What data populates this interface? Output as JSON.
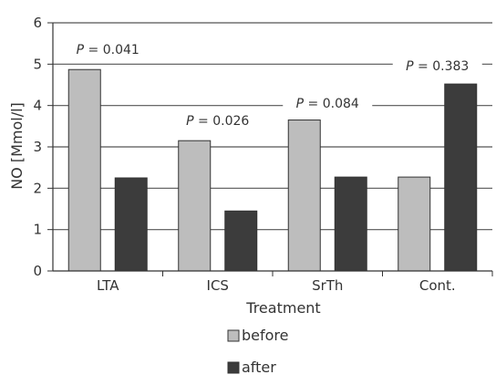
{
  "chart_data": {
    "type": "bar",
    "categories": [
      "LTA",
      "ICS",
      "SrTh",
      "Cont."
    ],
    "series": [
      {
        "name": "before",
        "values": [
          4.87,
          3.15,
          3.65,
          2.27
        ],
        "color": "#bdbdbd"
      },
      {
        "name": "after",
        "values": [
          2.25,
          1.45,
          2.27,
          4.52
        ],
        "color": "#3c3c3c"
      }
    ],
    "xlabel": "Treatment",
    "ylabel": "NO [Mmol/l]",
    "ylim": [
      0,
      6
    ],
    "yticks": [
      "0",
      "1",
      "2",
      "3",
      "4",
      "5",
      "6"
    ],
    "grid": true,
    "legend_position": "bottom-center",
    "annotations": [
      {
        "category": "LTA",
        "prefix": "P",
        "text": " = 0.041"
      },
      {
        "category": "ICS",
        "prefix": "P",
        "text": " = 0.026"
      },
      {
        "category": "SrTh",
        "prefix": "P",
        "text": " = 0.084"
      },
      {
        "category": "Cont.",
        "prefix": "P",
        "text": " = 0.383"
      }
    ]
  }
}
